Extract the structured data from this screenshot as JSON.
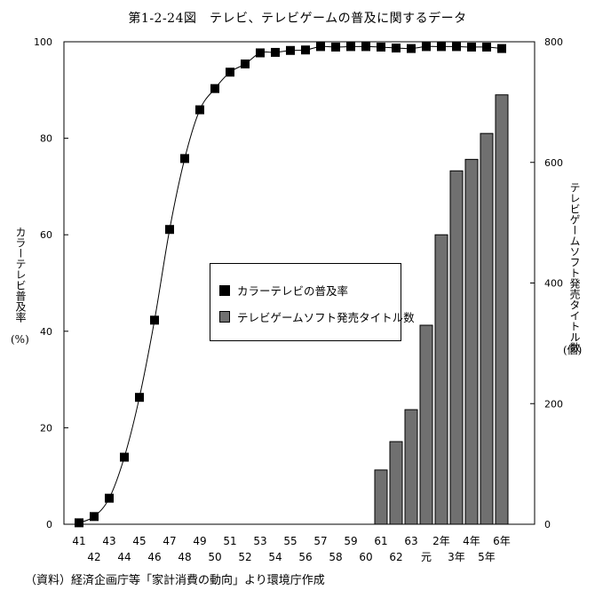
{
  "title": "第1-2-24図　テレビ、テレビゲームの普及に関するデータ",
  "source": "（資料）経済企画庁等「家計消費の動向」より環境庁作成",
  "left_axis_label": "カラーテレビ普及率",
  "left_axis_unit": "(%)",
  "right_axis_label": "テレビゲームソフト発売タイトル数",
  "right_axis_unit": "(個)",
  "legend": {
    "series1": "カラーテレビの普及率",
    "series2": "テレビゲームソフト発売タイトル数"
  },
  "colors": {
    "marker": "#000000",
    "bar_fill": "#707070",
    "line": "#000000"
  },
  "chart_data": {
    "type": "bar+line",
    "title": "第1-2-24図　テレビ、テレビゲームの普及に関するデータ",
    "x": [
      "41",
      "42",
      "43",
      "44",
      "45",
      "46",
      "47",
      "48",
      "49",
      "50",
      "51",
      "52",
      "53",
      "54",
      "55",
      "56",
      "57",
      "58",
      "59",
      "60",
      "61",
      "62",
      "63",
      "元",
      "2年",
      "3年",
      "4年",
      "5年",
      "6年"
    ],
    "tick_labels_row1": [
      "41",
      "43",
      "45",
      "47",
      "49",
      "51",
      "53",
      "55",
      "57",
      "59",
      "61",
      "63",
      "2年",
      "4年",
      "6年"
    ],
    "tick_labels_row2": [
      "42",
      "44",
      "46",
      "48",
      "50",
      "52",
      "54",
      "56",
      "58",
      "60",
      "62",
      "元",
      "3年",
      "5年"
    ],
    "y_left": {
      "label": "カラーテレビ普及率(%)",
      "range": [
        0,
        100
      ],
      "ticks": [
        0,
        20,
        40,
        60,
        80,
        100
      ]
    },
    "y_right": {
      "label": "テレビゲームソフト発売タイトル数(個)",
      "range": [
        0,
        800
      ],
      "ticks": [
        0,
        200,
        400,
        600,
        800
      ]
    },
    "series": [
      {
        "name": "カラーテレビの普及率",
        "type": "line",
        "axis": "left",
        "values": [
          0.3,
          1.6,
          5.4,
          13.9,
          26.3,
          42.3,
          61.1,
          75.8,
          85.9,
          90.3,
          93.7,
          95.4,
          97.7,
          97.8,
          98.2,
          98.3,
          99.0,
          98.9,
          99.0,
          99.0,
          98.9,
          98.7,
          98.6,
          99.0,
          99.0,
          99.0,
          98.9,
          98.9,
          98.6
        ]
      },
      {
        "name": "テレビゲームソフト発売タイトル数",
        "type": "bar",
        "axis": "right",
        "values": [
          null,
          null,
          null,
          null,
          null,
          null,
          null,
          null,
          null,
          null,
          null,
          null,
          null,
          null,
          null,
          null,
          null,
          null,
          null,
          null,
          90,
          137,
          190,
          330,
          480,
          586,
          605,
          648,
          712
        ]
      }
    ],
    "grid": false,
    "legend_position": "center-right"
  }
}
